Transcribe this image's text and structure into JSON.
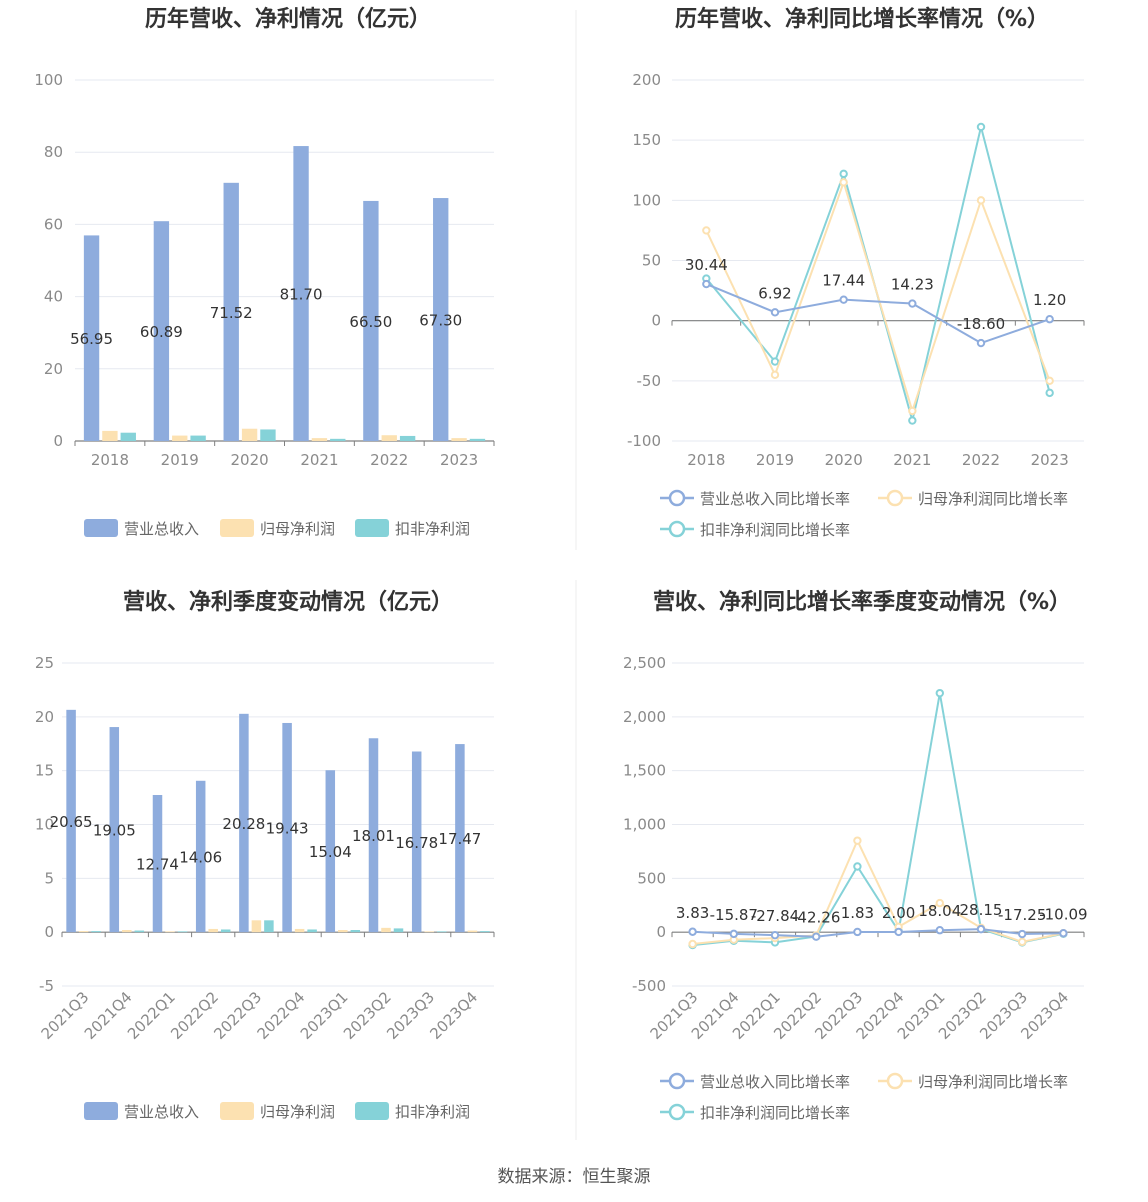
{
  "footer": {
    "source": "数据来源：恒生聚源"
  },
  "colors": {
    "revenue": "#8eacdd",
    "parent_profit": "#fce1b1",
    "deducted_profit": "#85d2d8"
  },
  "legend_bar": [
    "营业总收入",
    "归母净利润",
    "扣非净利润"
  ],
  "legend_line": [
    "营业总收入同比增长率",
    "归母净利润同比增长率",
    "扣非净利润同比增长率"
  ],
  "chart_data": [
    {
      "type": "bar",
      "title": "历年营收、净利情况（亿元）",
      "categories": [
        "2018",
        "2019",
        "2020",
        "2021",
        "2022",
        "2023"
      ],
      "ylim": [
        0,
        100
      ],
      "yticks": [
        "0",
        "20",
        "40",
        "60",
        "80",
        "100"
      ],
      "series": [
        {
          "name": "营业总收入",
          "values": [
            56.95,
            60.89,
            71.52,
            81.7,
            66.5,
            67.3
          ],
          "labels": [
            "56.95",
            "60.89",
            "71.52",
            "81.70",
            "66.50",
            "67.30"
          ]
        },
        {
          "name": "归母净利润",
          "values": [
            2.8,
            1.5,
            3.4,
            0.8,
            1.6,
            0.8
          ]
        },
        {
          "name": "扣非净利润",
          "values": [
            2.3,
            1.5,
            3.2,
            0.6,
            1.4,
            0.6
          ]
        }
      ]
    },
    {
      "type": "line",
      "title": "历年营收、净利同比增长率情况（%）",
      "categories": [
        "2018",
        "2019",
        "2020",
        "2021",
        "2022",
        "2023"
      ],
      "ylim": [
        -100,
        200
      ],
      "yticks": [
        "-100",
        "-50",
        "0",
        "50",
        "100",
        "150",
        "200"
      ],
      "series": [
        {
          "name": "营业总收入同比增长率",
          "values": [
            30.44,
            6.92,
            17.44,
            14.23,
            -18.6,
            1.2
          ],
          "labels": [
            "30.44",
            "6.92",
            "17.44",
            "14.23",
            "-18.60",
            "1.20"
          ]
        },
        {
          "name": "归母净利润同比增长率",
          "values": [
            75,
            -45,
            115,
            -75,
            100,
            -50
          ]
        },
        {
          "name": "扣非净利润同比增长率",
          "values": [
            35,
            -34,
            122,
            -83,
            161,
            -60
          ]
        }
      ]
    },
    {
      "type": "bar",
      "title": "营收、净利季度变动情况（亿元）",
      "categories": [
        "2021Q3",
        "2021Q4",
        "2022Q1",
        "2022Q2",
        "2022Q3",
        "2022Q4",
        "2023Q1",
        "2023Q2",
        "2023Q3",
        "2023Q4"
      ],
      "ylim": [
        -5,
        25
      ],
      "yticks": [
        "-5",
        "0",
        "5",
        "10",
        "15",
        "20",
        "25"
      ],
      "series": [
        {
          "name": "营业总收入",
          "values": [
            20.65,
            19.05,
            12.74,
            14.06,
            20.28,
            19.43,
            15.04,
            18.01,
            16.78,
            17.47
          ],
          "labels": [
            "20.65",
            "19.05",
            "12.74",
            "14.06",
            "20.28",
            "19.43",
            "15.04",
            "18.01",
            "16.78",
            "17.47"
          ]
        },
        {
          "name": "归母净利润",
          "values": [
            0.1,
            0.2,
            0.05,
            0.3,
            1.1,
            0.3,
            0.2,
            0.4,
            0.05,
            0.15
          ]
        },
        {
          "name": "扣非净利润",
          "values": [
            0.1,
            0.15,
            0.05,
            0.25,
            1.1,
            0.25,
            0.2,
            0.35,
            0.05,
            0.1
          ]
        }
      ]
    },
    {
      "type": "line",
      "title": "营收、净利同比增长率季度变动情况（%）",
      "categories": [
        "2021Q3",
        "2021Q4",
        "2022Q1",
        "2022Q2",
        "2022Q3",
        "2022Q4",
        "2023Q1",
        "2023Q2",
        "2023Q3",
        "2023Q4"
      ],
      "ylim": [
        -500,
        2500
      ],
      "yticks": [
        "-500",
        "0",
        "500",
        "1,000",
        "1,500",
        "2,000",
        "2,500"
      ],
      "series": [
        {
          "name": "营业总收入同比增长率",
          "values": [
            3.83,
            -15.87,
            -27.84,
            -42.26,
            1.83,
            2.0,
            18.04,
            28.15,
            -17.25,
            -10.09
          ],
          "labels": [
            "3.83",
            "-15.87",
            "-27.84",
            "-42.26",
            "1.83",
            "2.00",
            "18.04",
            "28.15",
            "-17.25",
            "-10.09"
          ]
        },
        {
          "name": "归母净利润同比增长率",
          "values": [
            -110,
            -70,
            -55,
            -30,
            850,
            50,
            270,
            40,
            -90,
            -10
          ]
        },
        {
          "name": "扣非净利润同比增长率",
          "values": [
            -120,
            -80,
            -95,
            -40,
            610,
            10,
            2220,
            30,
            -95,
            -15
          ]
        }
      ]
    }
  ]
}
